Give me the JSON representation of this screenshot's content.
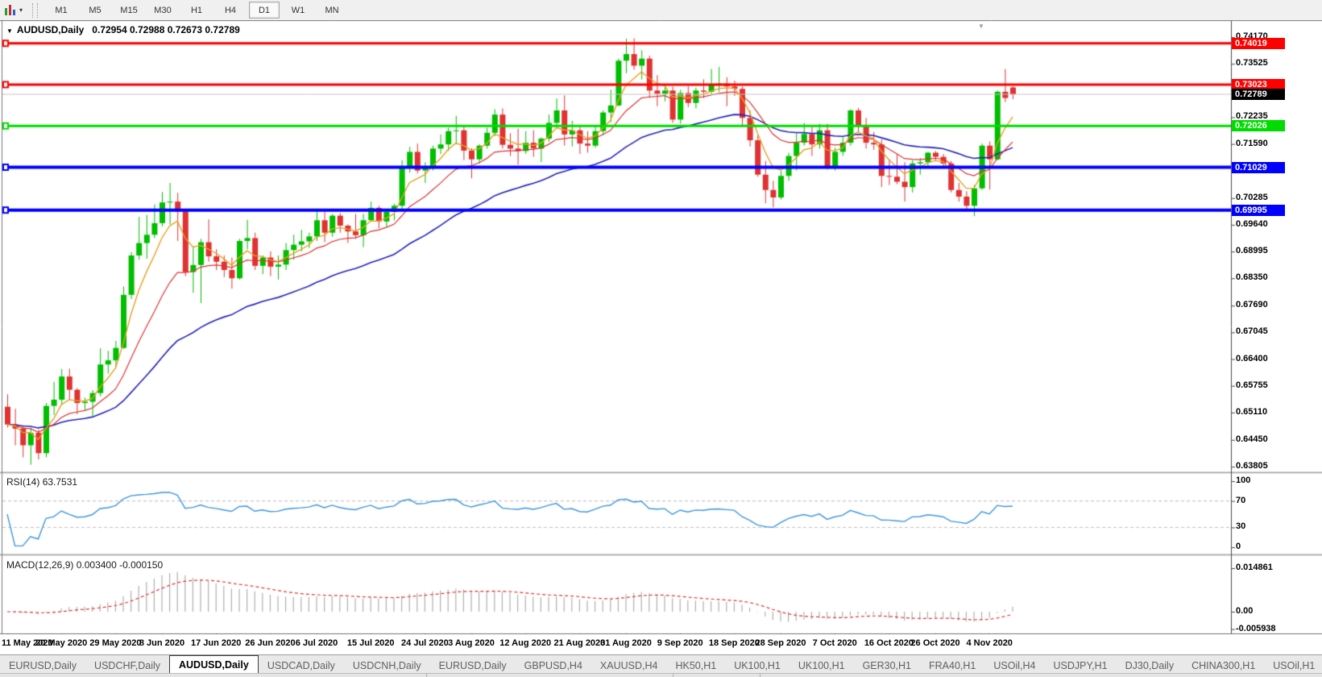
{
  "toolbar": {
    "timeframes": [
      "M1",
      "M5",
      "M15",
      "M30",
      "H1",
      "H4",
      "D1",
      "W1",
      "MN"
    ],
    "active_timeframe": "D1"
  },
  "icons": {
    "dropdown_caret": "▾",
    "collapse_caret": "▼",
    "shift_marker": "▼",
    "scroll_left": "◂",
    "scroll_right": "▸"
  },
  "chart": {
    "symbol": "AUDUSD,Daily",
    "ohlc_display": "0.72954 0.72988 0.72673 0.72789",
    "current_price": 0.72789,
    "current_price_label": "0.72789",
    "price_ticks": [
      "0.74170",
      "0.73525",
      "0.72880",
      "0.72235",
      "0.71590",
      "0.70930",
      "0.70285",
      "0.69640",
      "0.68995",
      "0.68350",
      "0.67690",
      "0.67045",
      "0.66400",
      "0.65755",
      "0.65110",
      "0.64450",
      "0.63805"
    ],
    "levels": [
      {
        "price": 0.74019,
        "label": "0.74019",
        "color": "#FF0000",
        "width": 3
      },
      {
        "price": 0.73023,
        "label": "0.73023",
        "color": "#FF0000",
        "width": 3
      },
      {
        "price": 0.72026,
        "label": "0.72026",
        "color": "#00DC00",
        "width": 3
      },
      {
        "price": 0.71029,
        "label": "0.71029",
        "color": "#0000FF",
        "width": 4
      },
      {
        "price": 0.69995,
        "label": "0.69995",
        "color": "#0000FF",
        "width": 4
      }
    ],
    "colors": {
      "bull": "#00BE00",
      "bear": "#E03232",
      "ma_fast": "#E8A020",
      "ma_mid": "#E03232",
      "ma_slow": "#2424BC",
      "price_line": "#C8C8C8",
      "current_badge_bg": "#000000",
      "rsi_line": "#3E97DE",
      "macd_hist": "#B0B0B0",
      "macd_signal": "#E03232",
      "axis_line": "#4a4a4a"
    }
  },
  "rsi_panel": {
    "name": "RSI(14)",
    "value": "63.7531",
    "ticks": [
      {
        "v": 100,
        "label": "100"
      },
      {
        "v": 70,
        "label": "70"
      },
      {
        "v": 30,
        "label": "30"
      },
      {
        "v": 0,
        "label": "0"
      }
    ],
    "dashed_levels": [
      70,
      30
    ]
  },
  "macd_panel": {
    "name": "MACD(12,26,9)",
    "values": "0.003400 -0.000150",
    "ticks": [
      {
        "v": "max",
        "label": "0.014861"
      },
      {
        "v": "zero",
        "label": "0.00"
      },
      {
        "v": "min",
        "label": "-0.005938"
      }
    ]
  },
  "chart_data": {
    "type": "candlestick",
    "symbol": "AUDUSD",
    "timeframe": "Daily",
    "title": "AUDUSD,Daily 0.72954 0.72988 0.72673 0.72789",
    "ylim": [
      0.63805,
      0.7417
    ],
    "overlays": [
      {
        "name": "ma-fast",
        "kind": "ema",
        "period": 5
      },
      {
        "name": "ma-mid",
        "kind": "ema",
        "period": 13
      },
      {
        "name": "ma-slow",
        "kind": "ema",
        "period": 34
      }
    ],
    "indicators": [
      {
        "name": "RSI",
        "period": 14,
        "last": 63.7531,
        "range": [
          0,
          100
        ]
      },
      {
        "name": "MACD",
        "params": [
          12,
          26,
          9
        ],
        "last": [
          0.0034,
          -0.00015
        ],
        "range": [
          -0.005938,
          0.014861
        ]
      }
    ],
    "date_ticks": [
      {
        "bar": 0,
        "label": "11 May 2020"
      },
      {
        "bar": 7,
        "label": "20 May 2020"
      },
      {
        "bar": 14,
        "label": "29 May 2020"
      },
      {
        "bar": 20,
        "label": "8 Jun 2020"
      },
      {
        "bar": 27,
        "label": "17 Jun 2020"
      },
      {
        "bar": 34,
        "label": "26 Jun 2020"
      },
      {
        "bar": 40,
        "label": "6 Jul 2020"
      },
      {
        "bar": 47,
        "label": "15 Jul 2020"
      },
      {
        "bar": 54,
        "label": "24 Jul 2020"
      },
      {
        "bar": 60,
        "label": "3 Aug 2020"
      },
      {
        "bar": 67,
        "label": "12 Aug 2020"
      },
      {
        "bar": 74,
        "label": "21 Aug 2020"
      },
      {
        "bar": 80,
        "label": "31 Aug 2020"
      },
      {
        "bar": 87,
        "label": "9 Sep 2020"
      },
      {
        "bar": 94,
        "label": "18 Sep 2020"
      },
      {
        "bar": 100,
        "label": "28 Sep 2020"
      },
      {
        "bar": 107,
        "label": "7 Oct 2020"
      },
      {
        "bar": 114,
        "label": "16 Oct 2020"
      },
      {
        "bar": 120,
        "label": "26 Oct 2020"
      },
      {
        "bar": 127,
        "label": "4 Nov 2020"
      }
    ],
    "ohlc": [
      [
        0.6525,
        0.6555,
        0.6475,
        0.6482
      ],
      [
        0.6482,
        0.652,
        0.6432,
        0.6472
      ],
      [
        0.6472,
        0.648,
        0.6403,
        0.6432
      ],
      [
        0.6432,
        0.6475,
        0.6385,
        0.6462
      ],
      [
        0.6462,
        0.647,
        0.6398,
        0.6413
      ],
      [
        0.6413,
        0.6534,
        0.6403,
        0.6527
      ],
      [
        0.6527,
        0.6585,
        0.6505,
        0.6542
      ],
      [
        0.6542,
        0.6616,
        0.653,
        0.6598
      ],
      [
        0.6598,
        0.6617,
        0.6542,
        0.6566
      ],
      [
        0.6566,
        0.657,
        0.6507,
        0.6534
      ],
      [
        0.6534,
        0.6547,
        0.6515,
        0.6537
      ],
      [
        0.6537,
        0.6565,
        0.6502,
        0.6558
      ],
      [
        0.6558,
        0.6666,
        0.655,
        0.6627
      ],
      [
        0.6627,
        0.666,
        0.6605,
        0.6637
      ],
      [
        0.6637,
        0.6684,
        0.662,
        0.6667
      ],
      [
        0.6667,
        0.6815,
        0.6665,
        0.6795
      ],
      [
        0.6795,
        0.6898,
        0.6785,
        0.689
      ],
      [
        0.689,
        0.6983,
        0.688,
        0.692
      ],
      [
        0.692,
        0.6988,
        0.6882,
        0.694
      ],
      [
        0.694,
        0.7013,
        0.6932,
        0.6968
      ],
      [
        0.6968,
        0.7043,
        0.696,
        0.7018
      ],
      [
        0.7018,
        0.7065,
        0.6965,
        0.702
      ],
      [
        0.702,
        0.7041,
        0.6925,
        0.6996
      ],
      [
        0.6996,
        0.7,
        0.684,
        0.685
      ],
      [
        0.685,
        0.691,
        0.68,
        0.6867
      ],
      [
        0.6867,
        0.693,
        0.6775,
        0.6922
      ],
      [
        0.6922,
        0.6977,
        0.6875,
        0.6888
      ],
      [
        0.6888,
        0.6905,
        0.6855,
        0.6875
      ],
      [
        0.6875,
        0.689,
        0.6838,
        0.6855
      ],
      [
        0.6855,
        0.6885,
        0.681,
        0.6835
      ],
      [
        0.6835,
        0.693,
        0.6832,
        0.6925
      ],
      [
        0.6925,
        0.6976,
        0.6905,
        0.6932
      ],
      [
        0.6932,
        0.6945,
        0.6855,
        0.6865
      ],
      [
        0.6865,
        0.689,
        0.6845,
        0.6885
      ],
      [
        0.6885,
        0.69,
        0.684,
        0.6863
      ],
      [
        0.6863,
        0.689,
        0.6832,
        0.6868
      ],
      [
        0.6868,
        0.692,
        0.6855,
        0.6903
      ],
      [
        0.6903,
        0.694,
        0.688,
        0.6916
      ],
      [
        0.6916,
        0.6952,
        0.69,
        0.6924
      ],
      [
        0.6924,
        0.6945,
        0.6908,
        0.6936
      ],
      [
        0.6936,
        0.6998,
        0.6925,
        0.6975
      ],
      [
        0.6975,
        0.6995,
        0.6922,
        0.6945
      ],
      [
        0.6945,
        0.699,
        0.6935,
        0.6986
      ],
      [
        0.6986,
        0.6992,
        0.6945,
        0.6962
      ],
      [
        0.6962,
        0.6965,
        0.692,
        0.6948
      ],
      [
        0.6948,
        0.699,
        0.693,
        0.6939
      ],
      [
        0.6939,
        0.699,
        0.691,
        0.6975
      ],
      [
        0.6975,
        0.702,
        0.6972,
        0.7005
      ],
      [
        0.7005,
        0.701,
        0.6955,
        0.6972
      ],
      [
        0.6972,
        0.7,
        0.696,
        0.6995
      ],
      [
        0.6995,
        0.7015,
        0.6975,
        0.701
      ],
      [
        0.701,
        0.712,
        0.7,
        0.7105
      ],
      [
        0.7105,
        0.7152,
        0.709,
        0.714
      ],
      [
        0.714,
        0.716,
        0.7088,
        0.7095
      ],
      [
        0.7095,
        0.7115,
        0.7065,
        0.7105
      ],
      [
        0.7105,
        0.7155,
        0.7095,
        0.7148
      ],
      [
        0.7148,
        0.7182,
        0.7135,
        0.7158
      ],
      [
        0.7158,
        0.7198,
        0.7142,
        0.719
      ],
      [
        0.719,
        0.7227,
        0.7158,
        0.7192
      ],
      [
        0.7192,
        0.72,
        0.712,
        0.7143
      ],
      [
        0.7143,
        0.7149,
        0.7076,
        0.7122
      ],
      [
        0.7122,
        0.7158,
        0.7112,
        0.7155
      ],
      [
        0.7155,
        0.7198,
        0.7148,
        0.7186
      ],
      [
        0.7186,
        0.7243,
        0.7178,
        0.723
      ],
      [
        0.723,
        0.7245,
        0.7148,
        0.7157
      ],
      [
        0.7157,
        0.7185,
        0.713,
        0.7148
      ],
      [
        0.7148,
        0.7196,
        0.7109,
        0.7142
      ],
      [
        0.7142,
        0.719,
        0.7135,
        0.7162
      ],
      [
        0.7162,
        0.7192,
        0.7128,
        0.7148
      ],
      [
        0.7148,
        0.7175,
        0.7115,
        0.7172
      ],
      [
        0.7172,
        0.723,
        0.7165,
        0.721
      ],
      [
        0.721,
        0.7269,
        0.72,
        0.724
      ],
      [
        0.724,
        0.7276,
        0.7155,
        0.7182
      ],
      [
        0.7182,
        0.7215,
        0.7153,
        0.7192
      ],
      [
        0.7192,
        0.72,
        0.7135,
        0.716
      ],
      [
        0.716,
        0.719,
        0.7138,
        0.7155
      ],
      [
        0.7155,
        0.7205,
        0.715,
        0.719
      ],
      [
        0.719,
        0.724,
        0.718,
        0.7235
      ],
      [
        0.7235,
        0.729,
        0.7212,
        0.7252
      ],
      [
        0.7252,
        0.7365,
        0.725,
        0.736
      ],
      [
        0.736,
        0.7413,
        0.733,
        0.7376
      ],
      [
        0.7376,
        0.7414,
        0.7338,
        0.7348
      ],
      [
        0.7348,
        0.7385,
        0.7315,
        0.7365
      ],
      [
        0.7365,
        0.7372,
        0.727,
        0.7288
      ],
      [
        0.7288,
        0.7325,
        0.725,
        0.728
      ],
      [
        0.728,
        0.73,
        0.7262,
        0.7288
      ],
      [
        0.7288,
        0.7298,
        0.721,
        0.7218
      ],
      [
        0.7218,
        0.729,
        0.7208,
        0.7282
      ],
      [
        0.7282,
        0.7299,
        0.7248,
        0.7258
      ],
      [
        0.7258,
        0.7295,
        0.7245,
        0.7288
      ],
      [
        0.7288,
        0.7315,
        0.727,
        0.7285
      ],
      [
        0.7285,
        0.734,
        0.728,
        0.7302
      ],
      [
        0.7302,
        0.7345,
        0.7285,
        0.7305
      ],
      [
        0.7305,
        0.732,
        0.725,
        0.7298
      ],
      [
        0.7298,
        0.7312,
        0.7275,
        0.7292
      ],
      [
        0.7292,
        0.7298,
        0.72,
        0.7222
      ],
      [
        0.7222,
        0.724,
        0.7153,
        0.7168
      ],
      [
        0.7168,
        0.718,
        0.708,
        0.7085
      ],
      [
        0.7085,
        0.7118,
        0.7016,
        0.7048
      ],
      [
        0.7048,
        0.707,
        0.7006,
        0.703
      ],
      [
        0.703,
        0.7094,
        0.7025,
        0.7082
      ],
      [
        0.7082,
        0.7138,
        0.707,
        0.713
      ],
      [
        0.713,
        0.7185,
        0.7095,
        0.7162
      ],
      [
        0.7162,
        0.721,
        0.7155,
        0.7183
      ],
      [
        0.7183,
        0.72,
        0.713,
        0.7158
      ],
      [
        0.7158,
        0.7208,
        0.7148,
        0.7192
      ],
      [
        0.7192,
        0.7208,
        0.7097,
        0.7105
      ],
      [
        0.7105,
        0.715,
        0.7095,
        0.714
      ],
      [
        0.714,
        0.7175,
        0.713,
        0.7162
      ],
      [
        0.7162,
        0.7243,
        0.7155,
        0.724
      ],
      [
        0.724,
        0.7246,
        0.7188,
        0.7205
      ],
      [
        0.7205,
        0.7222,
        0.7148,
        0.7162
      ],
      [
        0.7162,
        0.7188,
        0.7145,
        0.7158
      ],
      [
        0.7158,
        0.717,
        0.7055,
        0.7082
      ],
      [
        0.7082,
        0.7122,
        0.706,
        0.708
      ],
      [
        0.708,
        0.7135,
        0.7062,
        0.7068
      ],
      [
        0.7068,
        0.7115,
        0.702,
        0.7055
      ],
      [
        0.7055,
        0.712,
        0.7042,
        0.7112
      ],
      [
        0.7112,
        0.7125,
        0.7085,
        0.7115
      ],
      [
        0.7115,
        0.714,
        0.71,
        0.7138
      ],
      [
        0.7138,
        0.7142,
        0.712,
        0.7128
      ],
      [
        0.7128,
        0.7135,
        0.7105,
        0.7112
      ],
      [
        0.7112,
        0.7118,
        0.7042,
        0.7048
      ],
      [
        0.7048,
        0.7065,
        0.702,
        0.7032
      ],
      [
        0.7032,
        0.7045,
        0.6997,
        0.701
      ],
      [
        0.701,
        0.706,
        0.6985,
        0.7052
      ],
      [
        0.7052,
        0.716,
        0.7048,
        0.7155
      ],
      [
        0.7155,
        0.7165,
        0.7049,
        0.7122
      ],
      [
        0.7122,
        0.7288,
        0.712,
        0.7285
      ],
      [
        0.7285,
        0.734,
        0.726,
        0.727
      ],
      [
        0.72954,
        0.72988,
        0.72673,
        0.72789
      ]
    ]
  },
  "tabs": {
    "items": [
      "EURUSD,Daily",
      "USDCHF,Daily",
      "AUDUSD,Daily",
      "USDCAD,Daily",
      "USDCNH,Daily",
      "EURUSD,Daily",
      "GBPUSD,H4",
      "XAUUSD,H4",
      "HK50,H1",
      "UK100,H1",
      "UK100,H1",
      "GER30,H1",
      "FRA40,H1",
      "USOil,H4",
      "USDJPY,H1",
      "DJ30,Daily",
      "CHINA300,H1",
      "USOil,H1"
    ],
    "active_index": 2
  }
}
